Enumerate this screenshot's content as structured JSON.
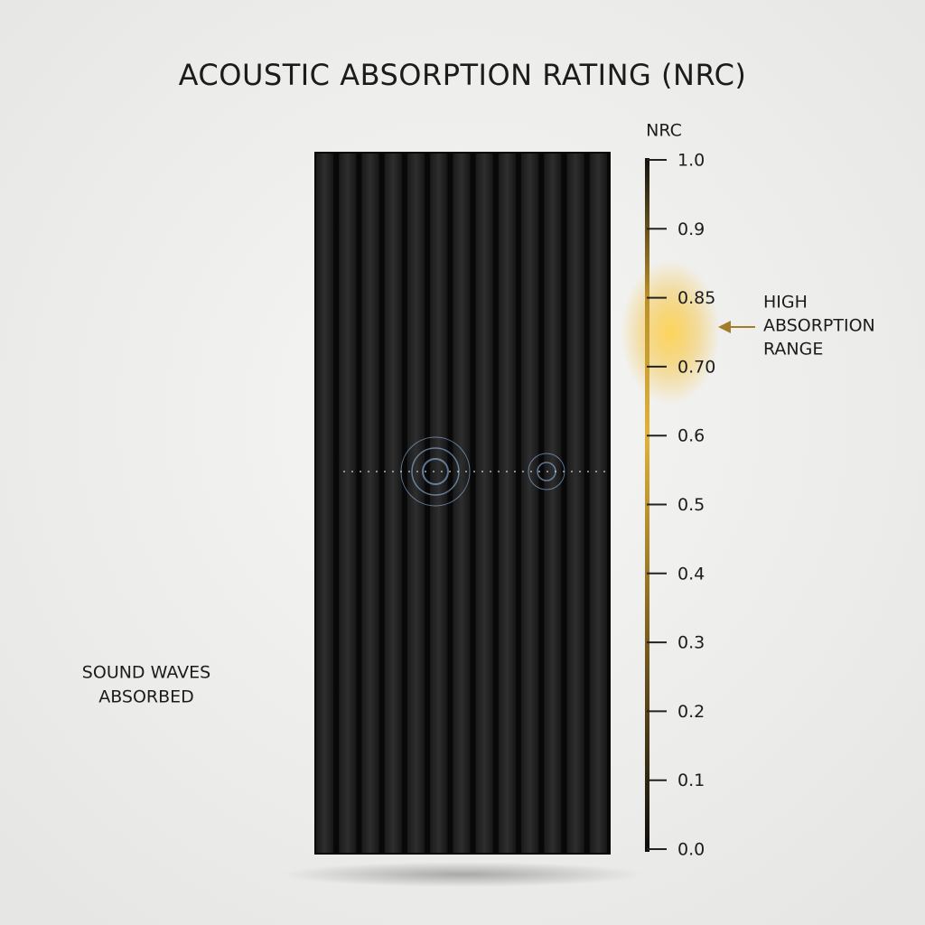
{
  "title": "ACOUSTIC ABSORPTION RATING (NRC)",
  "scale": {
    "label": "NRC",
    "ticks": [
      "1.0",
      "0.9",
      "0.85",
      "0.70",
      "0.6",
      "0.5",
      "0.4",
      "0.3",
      "0.2",
      "0.1",
      "0.0"
    ]
  },
  "highlight": {
    "lines": [
      "HIGH",
      "ABSORPTION",
      "RANGE"
    ]
  },
  "sound_label": {
    "lines": [
      "SOUND WAVES",
      "ABSORBED"
    ]
  }
}
